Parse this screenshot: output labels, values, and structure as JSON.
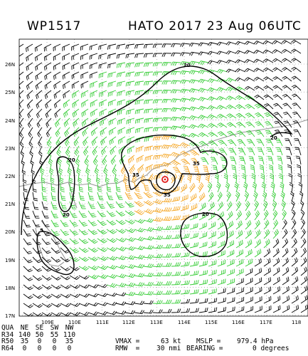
{
  "header": {
    "storm_id": "WP1517",
    "title": "HATO 2017 23 Aug 06UTC"
  },
  "map": {
    "lat_labels": [
      "26N",
      "25N",
      "24N",
      "23N",
      "22N",
      "21N",
      "20N",
      "19N",
      "18N",
      "17N"
    ],
    "lon_labels": [
      "109E",
      "110E",
      "111E",
      "112E",
      "113E",
      "114E",
      "115E",
      "116E",
      "117E",
      "118"
    ],
    "wind_contours": [
      {
        "label": "20",
        "color": "#000000"
      },
      {
        "label": "35",
        "color": "#000000"
      },
      {
        "label": "50",
        "color": "#e21b1b"
      }
    ],
    "colors": {
      "barb_weak": "#000000",
      "barb_gale": "#33cc33",
      "barb_storm": "#f5a623",
      "center": "#e21b1b",
      "coast": "#999999"
    },
    "contour_labels": [
      "20",
      "20",
      "20",
      "20",
      "5",
      "20",
      "35",
      "35",
      "35",
      "20"
    ]
  },
  "quadrants": {
    "header": [
      "QUA",
      "NE",
      "SE",
      "SW",
      "NW"
    ],
    "rows": [
      [
        "R34",
        "140",
        "50",
        "55",
        "110"
      ],
      [
        "R50",
        "35",
        "0",
        "0",
        "35"
      ],
      [
        "R64",
        "0",
        "0",
        "0",
        "0"
      ]
    ]
  },
  "stats": {
    "vmax_label": "VMAX =",
    "vmax_value": "63 kt",
    "mslp_label": "MSLP =",
    "mslp_value": "979.4 hPa",
    "rmw_label": "RMW  =",
    "rmw_value": "30 nmi",
    "bearing_label": "BEARING =",
    "bearing_value": "0 degrees"
  }
}
